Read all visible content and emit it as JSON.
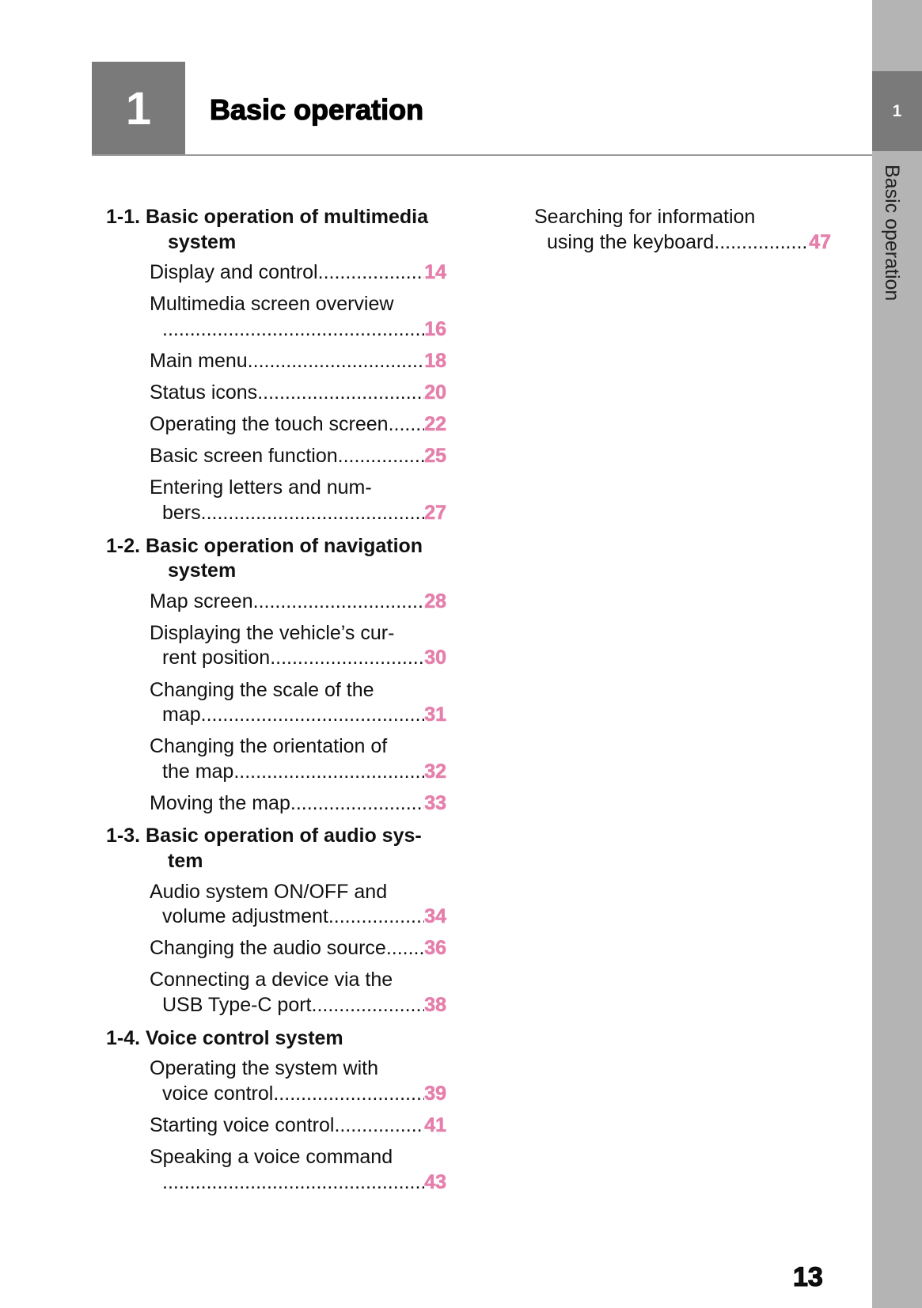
{
  "chapter": {
    "number": "1",
    "title": "Basic operation"
  },
  "side_tab": {
    "number": "1",
    "label": "Basic operation"
  },
  "colors": {
    "accent_page": "#e580ad",
    "chapter_box": "#7a7a7a",
    "side_bar": "#b4b4b4"
  },
  "toc_left": [
    {
      "type": "heading",
      "lines": [
        "1-1. Basic operation of multimedia",
        "system"
      ]
    },
    {
      "type": "entry",
      "lines": [
        "Display and control"
      ],
      "page": "14"
    },
    {
      "type": "entry",
      "lines": [
        "Multimedia screen overview",
        ""
      ],
      "page": "16"
    },
    {
      "type": "entry",
      "lines": [
        "Main menu"
      ],
      "page": "18"
    },
    {
      "type": "entry",
      "lines": [
        "Status icons"
      ],
      "page": "20"
    },
    {
      "type": "entry",
      "lines": [
        "Operating the touch screen"
      ],
      "page": "22"
    },
    {
      "type": "entry",
      "lines": [
        "Basic screen function"
      ],
      "page": "25"
    },
    {
      "type": "entry",
      "lines": [
        "Entering letters and num-",
        "bers"
      ],
      "page": "27"
    },
    {
      "type": "heading",
      "lines": [
        "1-2. Basic operation of navigation",
        "system"
      ]
    },
    {
      "type": "entry",
      "lines": [
        "Map screen"
      ],
      "page": "28"
    },
    {
      "type": "entry",
      "lines": [
        "Displaying the vehicle’s cur-",
        "rent position"
      ],
      "page": "30"
    },
    {
      "type": "entry",
      "lines": [
        "Changing the scale of the",
        "map"
      ],
      "page": "31"
    },
    {
      "type": "entry",
      "lines": [
        "Changing the orientation of",
        "the map"
      ],
      "page": "32"
    },
    {
      "type": "entry",
      "lines": [
        "Moving the map"
      ],
      "page": "33"
    },
    {
      "type": "heading",
      "lines": [
        "1-3. Basic operation of audio sys-",
        "tem"
      ]
    },
    {
      "type": "entry",
      "lines": [
        "Audio system ON/OFF and",
        "volume adjustment"
      ],
      "page": "34"
    },
    {
      "type": "entry",
      "lines": [
        "Changing the audio source"
      ],
      "page": "36"
    },
    {
      "type": "entry",
      "lines": [
        "Connecting a device via the",
        "USB Type-C port"
      ],
      "page": "38"
    },
    {
      "type": "heading",
      "lines": [
        "1-4. Voice control system"
      ]
    },
    {
      "type": "entry",
      "lines": [
        "Operating the system with",
        "voice control"
      ],
      "page": "39"
    },
    {
      "type": "entry",
      "lines": [
        "Starting voice control"
      ],
      "page": "41"
    },
    {
      "type": "entry",
      "lines": [
        "Speaking a voice command",
        ""
      ],
      "page": "43"
    }
  ],
  "toc_right": [
    {
      "type": "entry",
      "lines": [
        "Searching for information",
        "using the keyboard"
      ],
      "page": "47"
    }
  ],
  "page_number": "13"
}
